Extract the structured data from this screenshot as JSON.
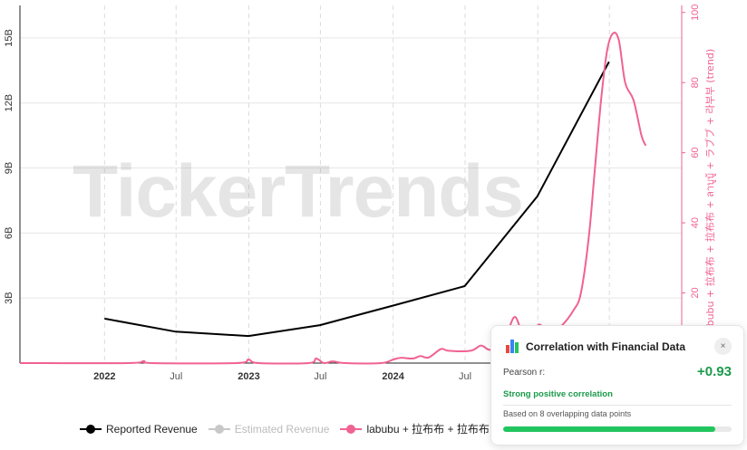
{
  "chart_data": {
    "type": "line",
    "watermark": "TickerTrends",
    "x_ticks": [
      "2022",
      "Jul",
      "2023",
      "Jul",
      "2024",
      "Jul"
    ],
    "y_left": {
      "ticks": [
        "3B",
        "6B",
        "9B",
        "12B",
        "15B"
      ],
      "ylim": [
        0,
        16.5
      ]
    },
    "y_right": {
      "label": "labubu + 拉布布 + 拉布布 + ลาบูบู้ + ラブブ + 라부부 (trend)",
      "ticks": [
        "20",
        "40",
        "60",
        "80",
        "100"
      ],
      "ylim": [
        0,
        102
      ]
    },
    "xlim": [
      "2021-06-01",
      "2025-12-31"
    ],
    "series": [
      {
        "name": "Reported Revenue",
        "color": "#000000",
        "axis": "left",
        "points": [
          [
            "2022-01-01",
            2.05
          ],
          [
            "2022-06-30",
            1.45
          ],
          [
            "2022-12-31",
            1.25
          ],
          [
            "2023-06-30",
            1.75
          ],
          [
            "2023-12-31",
            2.65
          ],
          [
            "2024-06-30",
            3.55
          ],
          [
            "2024-12-31",
            7.7
          ],
          [
            "2025-06-30",
            13.9
          ]
        ]
      },
      {
        "name": "Estimated Revenue",
        "color": "#c8c8c8",
        "axis": "left",
        "points": []
      },
      {
        "name": "labubu + 拉布布 + 拉布布",
        "color": "#f06292",
        "axis": "right",
        "points": [
          [
            "2021-06-01",
            0
          ],
          [
            "2022-03-01",
            0
          ],
          [
            "2022-04-10",
            0.6
          ],
          [
            "2022-05-01",
            0
          ],
          [
            "2022-12-01",
            0
          ],
          [
            "2022-12-31",
            1
          ],
          [
            "2023-01-25",
            0
          ],
          [
            "2023-06-01",
            0
          ],
          [
            "2023-06-20",
            1.3
          ],
          [
            "2023-07-10",
            0
          ],
          [
            "2023-08-01",
            0.5
          ],
          [
            "2023-09-01",
            0
          ],
          [
            "2023-12-01",
            0
          ],
          [
            "2024-01-01",
            1
          ],
          [
            "2024-01-20",
            1.5
          ],
          [
            "2024-02-20",
            1.3
          ],
          [
            "2024-03-10",
            2
          ],
          [
            "2024-03-31",
            1.6
          ],
          [
            "2024-05-01",
            4
          ],
          [
            "2024-05-20",
            3.5
          ],
          [
            "2024-07-15",
            3.5
          ],
          [
            "2024-08-10",
            5
          ],
          [
            "2024-08-31",
            3.8
          ],
          [
            "2024-10-01",
            4.1
          ],
          [
            "2024-11-01",
            13
          ],
          [
            "2024-11-20",
            9.7
          ],
          [
            "2024-12-15",
            8.5
          ],
          [
            "2025-01-05",
            11
          ],
          [
            "2025-01-31",
            8.3
          ],
          [
            "2025-03-01",
            10.5
          ],
          [
            "2025-04-01",
            15
          ],
          [
            "2025-04-20",
            20
          ],
          [
            "2025-05-10",
            36
          ],
          [
            "2025-05-25",
            55
          ],
          [
            "2025-06-10",
            75
          ],
          [
            "2025-06-25",
            89
          ],
          [
            "2025-07-10",
            94
          ],
          [
            "2025-07-25",
            92
          ],
          [
            "2025-08-10",
            80
          ],
          [
            "2025-08-31",
            75
          ],
          [
            "2025-09-20",
            65
          ],
          [
            "2025-10-01",
            62
          ]
        ]
      }
    ]
  },
  "legend": [
    {
      "label": "Reported Revenue",
      "color": "#000000"
    },
    {
      "label": "Estimated Revenue",
      "color": "#c8c8c8"
    },
    {
      "label": "labubu + 拉布布 + 拉布布",
      "color": "#f06292"
    }
  ],
  "correlation_card": {
    "title": "Correlation with Financial Data",
    "close_icon": "×",
    "pearson_label": "Pearson r:",
    "pearson_value": "+0.93",
    "strength": "Strong positive correlation",
    "overlap_text": "Based on 8 overlapping data points",
    "overlap_fraction": 0.93,
    "accent_color": "#1a9a4a"
  }
}
